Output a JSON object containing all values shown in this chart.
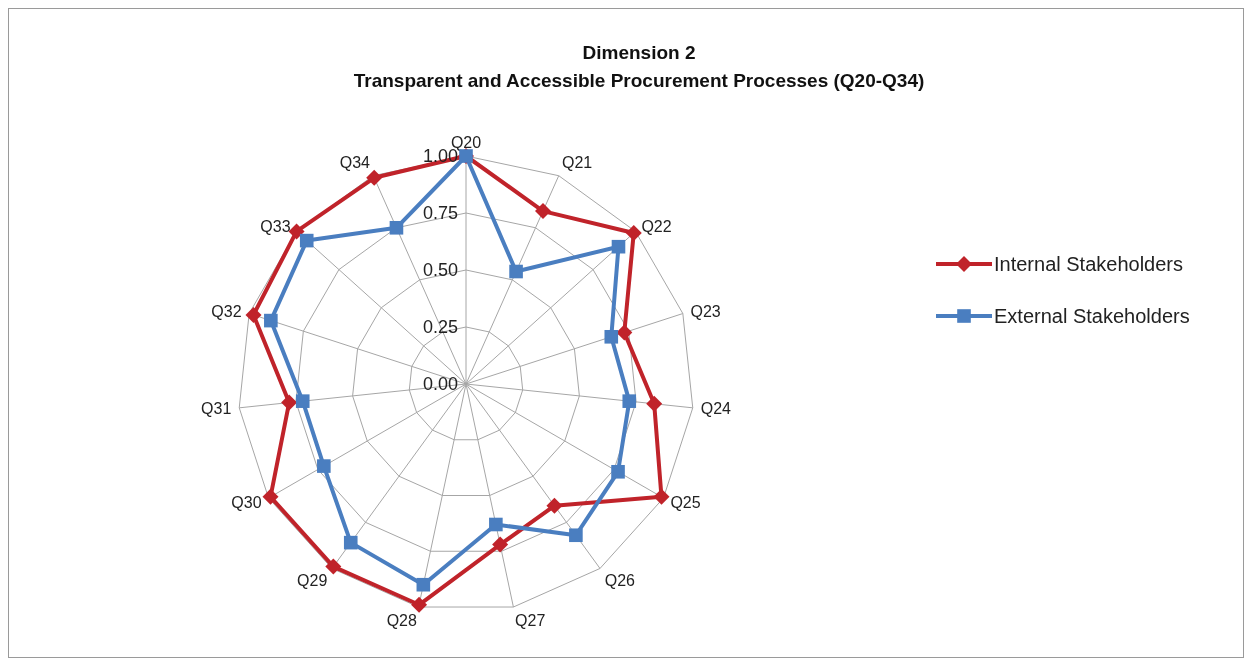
{
  "chart_data": {
    "type": "radar",
    "title": "Dimension 2",
    "subtitle": "Transparent and Accessible Procurement Processes (Q20-Q34)",
    "categories": [
      "Q20",
      "Q21",
      "Q22",
      "Q23",
      "Q24",
      "Q25",
      "Q26",
      "Q27",
      "Q28",
      "Q29",
      "Q30",
      "Q31",
      "Q32",
      "Q33",
      "Q34"
    ],
    "series": [
      {
        "name": "Internal Stakeholders",
        "color": "#c0232a",
        "marker": "diamond",
        "values": [
          1.0,
          0.83,
          0.99,
          0.73,
          0.83,
          0.99,
          0.66,
          0.72,
          0.99,
          0.99,
          0.99,
          0.78,
          0.98,
          1.0,
          0.99
        ]
      },
      {
        "name": "External Stakeholders",
        "color": "#4a7ec0",
        "marker": "square",
        "values": [
          1.0,
          0.54,
          0.9,
          0.67,
          0.72,
          0.77,
          0.82,
          0.63,
          0.9,
          0.86,
          0.72,
          0.72,
          0.9,
          0.94,
          0.75
        ]
      }
    ],
    "ylim": [
      0,
      1
    ],
    "yticks": [
      {
        "value": 0,
        "label": "0.00"
      },
      {
        "value": 0.25,
        "label": "0.25"
      },
      {
        "value": 0.5,
        "label": "0.50"
      },
      {
        "value": 0.75,
        "label": "0.75"
      },
      {
        "value": 1,
        "label": "1.00"
      }
    ],
    "grid": true,
    "legend": "right"
  }
}
